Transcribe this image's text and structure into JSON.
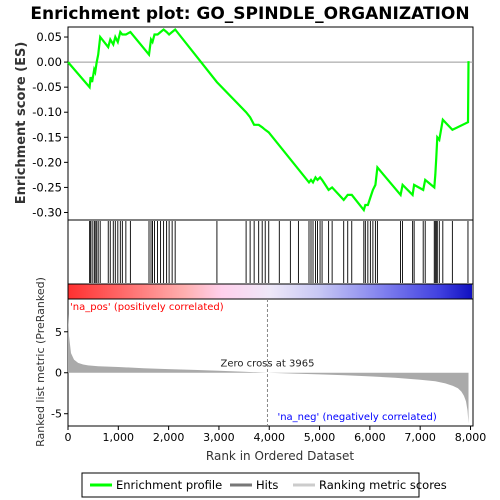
{
  "chart_data": {
    "type": "line",
    "title": "Enrichment plot: GO_SPINDLE_ORGANIZATION",
    "top_panel": {
      "ylabel": "Enrichment score (ES)",
      "ylim": [
        -0.315,
        0.07
      ],
      "yticks": [
        0.05,
        0.0,
        -0.05,
        -0.1,
        -0.15,
        -0.2,
        -0.25,
        -0.3
      ],
      "ytick_labels": [
        "0.05",
        "0.00",
        "-0.05",
        "-0.10",
        "-0.15",
        "-0.20",
        "-0.25",
        "-0.30"
      ],
      "line_color": "#00ff00",
      "series": [
        {
          "name": "Enrichment profile",
          "x": [
            0,
            430,
            450,
            480,
            520,
            540,
            570,
            600,
            640,
            800,
            840,
            900,
            940,
            990,
            1040,
            1080,
            1150,
            1240,
            1610,
            1650,
            1680,
            1720,
            1780,
            1840,
            1900,
            1960,
            2010,
            2070,
            2130,
            2960,
            3540,
            3620,
            3700,
            3790,
            3860,
            3920,
            3990,
            4790,
            4830,
            4870,
            4920,
            4960,
            5010,
            5050,
            5180,
            5250,
            5480,
            5560,
            5640,
            5880,
            5910,
            5960,
            6010,
            6060,
            6110,
            6150,
            6610,
            6650,
            6850,
            6880,
            7060,
            7100,
            7280,
            7300,
            7320,
            7340,
            7380,
            7450,
            7640,
            7950,
            7960
          ],
          "y": [
            0.0,
            -0.05,
            -0.03,
            -0.04,
            -0.015,
            -0.02,
            0.0,
            0.015,
            0.05,
            0.03,
            0.045,
            0.035,
            0.05,
            0.04,
            0.06,
            0.055,
            0.055,
            0.06,
            0.015,
            0.045,
            0.04,
            0.055,
            0.055,
            0.06,
            0.065,
            0.06,
            0.055,
            0.06,
            0.065,
            -0.04,
            -0.1,
            -0.11,
            -0.125,
            -0.125,
            -0.13,
            -0.135,
            -0.14,
            -0.24,
            -0.235,
            -0.24,
            -0.23,
            -0.235,
            -0.23,
            -0.235,
            -0.255,
            -0.25,
            -0.275,
            -0.265,
            -0.265,
            -0.295,
            -0.285,
            -0.285,
            -0.27,
            -0.255,
            -0.245,
            -0.21,
            -0.265,
            -0.245,
            -0.265,
            -0.245,
            -0.255,
            -0.235,
            -0.25,
            -0.225,
            -0.19,
            -0.15,
            -0.155,
            -0.115,
            -0.135,
            -0.12,
            0.002
          ]
        }
      ]
    },
    "hits": {
      "name": "Hits",
      "x": [
        430,
        450,
        480,
        520,
        540,
        570,
        600,
        640,
        800,
        840,
        900,
        940,
        990,
        1040,
        1080,
        1150,
        1240,
        1610,
        1650,
        1680,
        1720,
        1780,
        1840,
        1900,
        1960,
        2010,
        2070,
        2130,
        2960,
        3540,
        3620,
        3700,
        3790,
        3860,
        3920,
        3990,
        4200,
        4420,
        4580,
        4790,
        4830,
        4870,
        4920,
        4960,
        5010,
        5050,
        5180,
        5250,
        5480,
        5560,
        5640,
        5880,
        5910,
        5960,
        6010,
        6060,
        6110,
        6150,
        6610,
        6650,
        6850,
        6880,
        7060,
        7100,
        7280,
        7300,
        7320,
        7340,
        7380,
        7450,
        7640,
        7950
      ]
    },
    "bottom_panel": {
      "xlabel": "Rank in Ordered Dataset",
      "ylabel": "Ranked list metric (PreRanked)",
      "xlim": [
        0,
        8050
      ],
      "xticks": [
        0,
        1000,
        2000,
        3000,
        4000,
        5000,
        6000,
        7000,
        8000
      ],
      "xtick_labels": [
        "0",
        "1,000",
        "2,000",
        "3,000",
        "4,000",
        "5,000",
        "6,000",
        "7,000",
        "8,000"
      ],
      "ylim": [
        -6.5,
        9
      ],
      "yticks": [
        5,
        0,
        -5
      ],
      "ytick_labels": [
        "5",
        "0",
        "-5"
      ],
      "total_ranks": 7960,
      "zero_cross_rank": 3965,
      "zero_cross_label": "Zero cross at 3965",
      "pos_label": "'na_pos' (positively correlated)",
      "neg_label": "'na_neg' (negatively correlated)",
      "metric_profile": {
        "rank": [
          0,
          20,
          60,
          120,
          200,
          300,
          400,
          600,
          1000,
          1500,
          2000,
          2500,
          3000,
          3500,
          3965,
          4500,
          5000,
          5500,
          6000,
          6500,
          7000,
          7300,
          7500,
          7650,
          7750,
          7820,
          7870,
          7910,
          7940,
          7960
        ],
        "value": [
          7.2,
          4.5,
          2.4,
          1.6,
          1.2,
          1.0,
          0.9,
          0.8,
          0.7,
          0.55,
          0.45,
          0.35,
          0.25,
          0.12,
          0.0,
          -0.1,
          -0.2,
          -0.3,
          -0.45,
          -0.6,
          -0.85,
          -1.05,
          -1.3,
          -1.6,
          -1.9,
          -2.3,
          -2.8,
          -3.5,
          -4.6,
          -6.2
        ]
      }
    },
    "legend": {
      "items": [
        "Enrichment profile",
        "Hits",
        "Ranking metric scores"
      ],
      "colors": [
        "#00ff00",
        "#777777",
        "#cccccc"
      ]
    },
    "colors": {
      "positive": "#ff0000",
      "negative": "#0000ff",
      "metric_fill": "#aaaaaa"
    }
  }
}
